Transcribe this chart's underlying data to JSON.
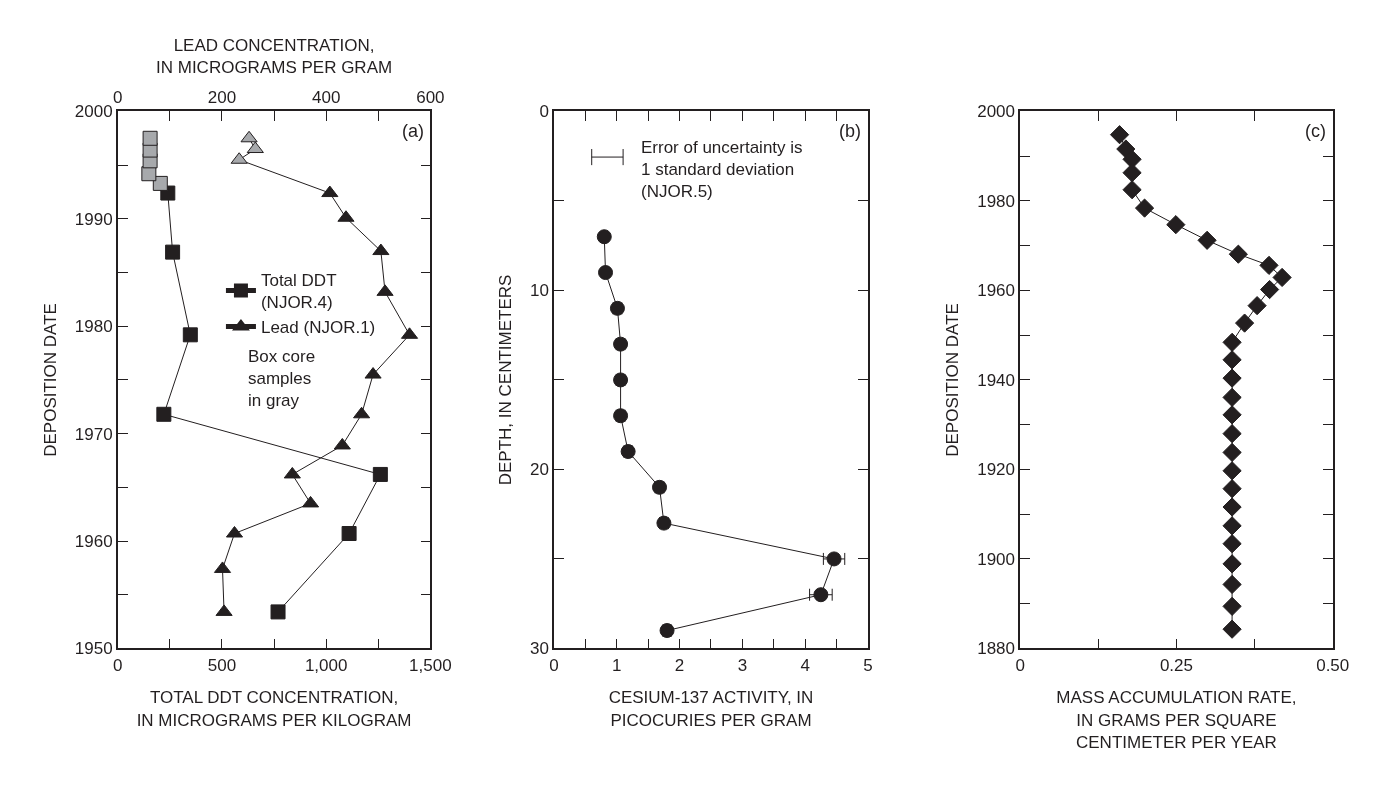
{
  "chart_data": [
    {
      "type": "line",
      "xlabel": "TOTAL DDT CONCENTRATION,\nIN MICROGRAMS PER KILOGRAM",
      "x2label": "LEAD CONCENTRATION,\nIN MICROGRAMS PER GRAM",
      "ylabel": "DEPOSITION DATE",
      "xlim": [
        0,
        1500
      ],
      "xticks": [
        0,
        {
          "value": 250,
          "label": null
        },
        {
          "value": 500,
          "label": "500"
        },
        {
          "value": 750,
          "label": null
        },
        {
          "value": 1000,
          "label": "1,000"
        },
        {
          "value": 1250,
          "label": null
        },
        {
          "value": 1500,
          "label": "1,500"
        }
      ],
      "x2lim": [
        0,
        600
      ],
      "x2ticks": [
        0,
        {
          "value": 100,
          "label": null
        },
        200,
        {
          "value": 300,
          "label": null
        },
        400,
        {
          "value": 500,
          "label": null
        },
        600
      ],
      "ylim": [
        1950,
        2000
      ],
      "yticks": [
        1950,
        {
          "value": 1955,
          "label": null
        },
        1960,
        {
          "value": 1965,
          "label": null
        },
        1970,
        {
          "value": 1975,
          "label": null
        },
        1980,
        {
          "value": 1985,
          "label": null
        },
        1990,
        {
          "value": 1995,
          "label": null
        },
        2000
      ],
      "legend": "center",
      "line_style": "solid",
      "annotations": [
        "(a)",
        "Box core\nsamples\nin gray"
      ],
      "series": [
        {
          "name": "Total DDT\n(NJOR.4)",
          "color": "#231f20",
          "marker": "square",
          "x": [
            769,
            1110,
            1260,
            221,
            348,
            263,
            240,
            204,
            149,
            155,
            155,
            155
          ],
          "values": [
            1953.4,
            1960.7,
            1966.2,
            1971.8,
            1979.2,
            1986.9,
            1992.4,
            1993.3,
            1994.2,
            1995.4,
            1996.4,
            1997.5
          ],
          "colors": [
            "#231f20",
            "#231f20",
            "#231f20",
            "#231f20",
            "#231f20",
            "#231f20",
            "#231f20",
            "#a7a9ac",
            "#a7a9ac",
            "#a7a9ac",
            "#a7a9ac",
            "#a7a9ac"
          ]
        },
        {
          "name": "Lead (NJOR.1)",
          "color": "#231f20",
          "marker": "triangle",
          "axis": "x2",
          "x": [
            204,
            201,
            224,
            370,
            335,
            431,
            468,
            490,
            560,
            513,
            505,
            438,
            407,
            233,
            264,
            252
          ],
          "values": [
            1953.4,
            1957.4,
            1960.7,
            1963.5,
            1966.2,
            1968.9,
            1971.8,
            1975.5,
            1979.2,
            1983.2,
            1987,
            1990.1,
            1992.4,
            1995.5,
            1996.5,
            1997.5
          ],
          "colors": [
            "#231f20",
            "#231f20",
            "#231f20",
            "#231f20",
            "#231f20",
            "#231f20",
            "#231f20",
            "#231f20",
            "#231f20",
            "#231f20",
            "#231f20",
            "#231f20",
            "#231f20",
            "#a7a9ac",
            "#a7a9ac",
            "#a7a9ac"
          ]
        }
      ]
    },
    {
      "type": "line",
      "xlabel": "CESIUM-137 ACTIVITY, IN\nPICOCURIES PER GRAM",
      "ylabel": "DEPTH, IN CENTIMETERS",
      "xlim": [
        0,
        5
      ],
      "xticks": [
        0,
        {
          "value": 0.5,
          "label": null
        },
        1,
        {
          "value": 1.5,
          "label": null
        },
        2,
        {
          "value": 2.5,
          "label": null
        },
        3,
        {
          "value": 3.5,
          "label": null
        },
        4,
        {
          "value": 4.5,
          "label": null
        },
        5
      ],
      "ylim": [
        30,
        0
      ],
      "yticks": [
        0,
        {
          "value": 5,
          "label": null
        },
        10,
        {
          "value": 15,
          "label": null
        },
        20,
        {
          "value": 25,
          "label": null
        },
        30
      ],
      "line_style": "solid",
      "annotations": [
        "(b)",
        "Error of uncertainty is\n1 standard deviation\n(NJOR.5)"
      ],
      "series": [
        {
          "color": "#231f20",
          "marker": "circle",
          "x": [
            0.8,
            0.82,
            1.01,
            1.06,
            1.06,
            1.06,
            1.18,
            1.68,
            1.75,
            4.46,
            4.25,
            1.8
          ],
          "values": [
            7,
            9,
            11,
            13,
            15,
            17,
            19,
            21,
            23,
            25,
            27,
            29
          ],
          "xerrors": [
            0.05,
            0.05,
            0.07,
            0.07,
            0.07,
            0.07,
            0.07,
            0.07,
            0.07,
            0.17,
            0.18,
            0.07
          ]
        }
      ]
    },
    {
      "type": "line",
      "xlabel": "MASS ACCUMULATION RATE,\nIN GRAMS PER SQUARE\nCENTIMETER PER YEAR",
      "ylabel": "DEPOSITION DATE",
      "xlim": [
        0,
        0.5
      ],
      "xticks": [
        0,
        {
          "value": 0.125,
          "label": null
        },
        0.25,
        {
          "value": 0.375,
          "label": null
        },
        {
          "value": 0.5,
          "label": "0.50"
        }
      ],
      "ylim": [
        1880,
        2000
      ],
      "yticks": [
        1880,
        {
          "value": 1890,
          "label": null
        },
        1900,
        {
          "value": 1910,
          "label": null
        },
        1920,
        {
          "value": 1930,
          "label": null
        },
        1940,
        {
          "value": 1950,
          "label": null
        },
        1960,
        {
          "value": 1970,
          "label": null
        },
        1980,
        {
          "value": 1990,
          "label": null
        },
        2000
      ],
      "line_style": "solid",
      "annotations": [
        "(c)"
      ],
      "series": [
        {
          "color": "#231f20",
          "marker": "diamond",
          "x": [
            0.159,
            0.169,
            0.179,
            0.179,
            0.179,
            0.199,
            0.249,
            0.299,
            0.349,
            0.398,
            0.419,
            0.399,
            0.379,
            0.359,
            0.339,
            0.339,
            0.339,
            0.339,
            0.339,
            0.339,
            0.339,
            0.339,
            0.339,
            0.339,
            0.339,
            0.339,
            0.339,
            0.339,
            0.339,
            0.339
          ],
          "values": [
            1994.8,
            1991.6,
            1989.3,
            1986.3,
            1982.5,
            1978.4,
            1974.7,
            1971.2,
            1968.1,
            1965.6,
            1962.9,
            1960.2,
            1956.6,
            1952.7,
            1948.4,
            1944.5,
            1940.4,
            1936.1,
            1932.2,
            1928.0,
            1923.8,
            1919.7,
            1915.7,
            1911.6,
            1907.4,
            1903.4,
            1898.9,
            1894.3,
            1889.4,
            1884.3
          ]
        }
      ]
    }
  ]
}
